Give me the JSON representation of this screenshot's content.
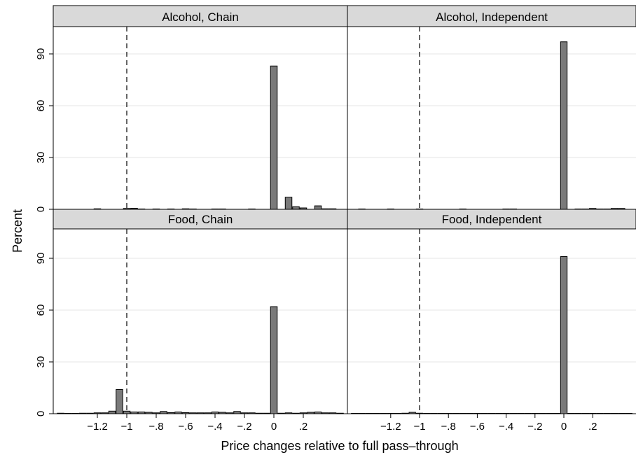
{
  "chart_data": {
    "type": "bar",
    "xlabel": "Price changes relative to full pass–through",
    "ylabel": "Percent",
    "xlim": [
      -1.5,
      0.5
    ],
    "ylim": [
      0,
      105
    ],
    "x_ticks": [
      -1.2,
      -1,
      -0.8,
      -0.6,
      -0.4,
      -0.2,
      0,
      0.2
    ],
    "x_tick_labels": [
      "−1.2",
      "−1",
      "−.8",
      "−.6",
      "−.4",
      "−.2",
      "0",
      ".2"
    ],
    "y_ticks": [
      0,
      30,
      60,
      90
    ],
    "y_tick_labels": [
      "0",
      "30",
      "60",
      "90"
    ],
    "reference_line": {
      "x": -1,
      "style": "dashed"
    },
    "grid": "horizontal",
    "bin_width": 0.05,
    "colors": {
      "bar_fill": "#7a7a7a",
      "bar_stroke": "#000000",
      "header_fill": "#d9d9d9",
      "grid": "#e6e6e6"
    },
    "panels": [
      {
        "title": "Alcohol, Chain",
        "bins": [
          {
            "x": -1.2,
            "value": 0.3
          },
          {
            "x": -1.0,
            "value": 0.5
          },
          {
            "x": -0.95,
            "value": 0.6
          },
          {
            "x": -0.9,
            "value": 0.2
          },
          {
            "x": -0.8,
            "value": 0.2
          },
          {
            "x": -0.7,
            "value": 0.2
          },
          {
            "x": -0.6,
            "value": 0.3
          },
          {
            "x": -0.55,
            "value": 0.2
          },
          {
            "x": -0.4,
            "value": 0.2
          },
          {
            "x": -0.35,
            "value": 0.2
          },
          {
            "x": -0.15,
            "value": 0.2
          },
          {
            "x": 0.0,
            "value": 83
          },
          {
            "x": 0.1,
            "value": 7
          },
          {
            "x": 0.15,
            "value": 1.5
          },
          {
            "x": 0.2,
            "value": 0.8
          },
          {
            "x": 0.3,
            "value": 2.0
          },
          {
            "x": 0.35,
            "value": 0.3
          },
          {
            "x": 0.4,
            "value": 0.3
          }
        ]
      },
      {
        "title": "Alcohol, Independent",
        "bins": [
          {
            "x": -1.4,
            "value": 0.2
          },
          {
            "x": -1.2,
            "value": 0.2
          },
          {
            "x": -1.0,
            "value": 0.2
          },
          {
            "x": -0.7,
            "value": 0.2
          },
          {
            "x": -0.4,
            "value": 0.2
          },
          {
            "x": -0.35,
            "value": 0.2
          },
          {
            "x": 0.0,
            "value": 97
          },
          {
            "x": 0.1,
            "value": 0.2
          },
          {
            "x": 0.15,
            "value": 0.2
          },
          {
            "x": 0.2,
            "value": 0.5
          },
          {
            "x": 0.25,
            "value": 0.2
          },
          {
            "x": 0.3,
            "value": 0.2
          },
          {
            "x": 0.35,
            "value": 0.5
          },
          {
            "x": 0.4,
            "value": 0.5
          }
        ]
      },
      {
        "title": "Food, Chain",
        "bins": [
          {
            "x": -1.45,
            "value": 0.3
          },
          {
            "x": -1.4,
            "value": 0.2
          },
          {
            "x": -1.35,
            "value": 0.2
          },
          {
            "x": -1.3,
            "value": 0.3
          },
          {
            "x": -1.25,
            "value": 0.3
          },
          {
            "x": -1.2,
            "value": 0.5
          },
          {
            "x": -1.15,
            "value": 0.5
          },
          {
            "x": -1.1,
            "value": 1.5
          },
          {
            "x": -1.05,
            "value": 14
          },
          {
            "x": -1.0,
            "value": 1.5
          },
          {
            "x": -0.95,
            "value": 1.0
          },
          {
            "x": -0.9,
            "value": 1.0
          },
          {
            "x": -0.85,
            "value": 0.8
          },
          {
            "x": -0.8,
            "value": 0.5
          },
          {
            "x": -0.75,
            "value": 1.3
          },
          {
            "x": -0.7,
            "value": 0.6
          },
          {
            "x": -0.65,
            "value": 1.0
          },
          {
            "x": -0.6,
            "value": 0.6
          },
          {
            "x": -0.55,
            "value": 0.5
          },
          {
            "x": -0.5,
            "value": 0.5
          },
          {
            "x": -0.45,
            "value": 0.5
          },
          {
            "x": -0.4,
            "value": 1.0
          },
          {
            "x": -0.35,
            "value": 0.8
          },
          {
            "x": -0.3,
            "value": 0.5
          },
          {
            "x": -0.25,
            "value": 1.3
          },
          {
            "x": -0.2,
            "value": 0.5
          },
          {
            "x": -0.15,
            "value": 0.5
          },
          {
            "x": -0.1,
            "value": 0.3
          },
          {
            "x": -0.05,
            "value": 0.3
          },
          {
            "x": 0.0,
            "value": 62
          },
          {
            "x": 0.05,
            "value": 0.3
          },
          {
            "x": 0.1,
            "value": 0.5
          },
          {
            "x": 0.15,
            "value": 0.3
          },
          {
            "x": 0.2,
            "value": 0.5
          },
          {
            "x": 0.25,
            "value": 0.8
          },
          {
            "x": 0.3,
            "value": 1.0
          },
          {
            "x": 0.35,
            "value": 0.5
          },
          {
            "x": 0.4,
            "value": 0.5
          },
          {
            "x": 0.45,
            "value": 0.3
          }
        ]
      },
      {
        "title": "Food, Independent",
        "bins": [
          {
            "x": -1.45,
            "value": 0.2
          },
          {
            "x": -1.4,
            "value": 0.2
          },
          {
            "x": -1.35,
            "value": 0.2
          },
          {
            "x": -1.3,
            "value": 0.2
          },
          {
            "x": -1.25,
            "value": 0.2
          },
          {
            "x": -1.2,
            "value": 0.2
          },
          {
            "x": -1.15,
            "value": 0.2
          },
          {
            "x": -1.1,
            "value": 0.3
          },
          {
            "x": -1.05,
            "value": 0.8
          },
          {
            "x": -1.0,
            "value": 0.3
          },
          {
            "x": -0.95,
            "value": 0.2
          },
          {
            "x": -0.9,
            "value": 0.2
          },
          {
            "x": -0.85,
            "value": 0.2
          },
          {
            "x": -0.8,
            "value": 0.2
          },
          {
            "x": -0.75,
            "value": 0.2
          },
          {
            "x": -0.7,
            "value": 0.2
          },
          {
            "x": -0.65,
            "value": 0.2
          },
          {
            "x": -0.6,
            "value": 0.2
          },
          {
            "x": -0.55,
            "value": 0.2
          },
          {
            "x": -0.5,
            "value": 0.2
          },
          {
            "x": -0.45,
            "value": 0.2
          },
          {
            "x": -0.4,
            "value": 0.2
          },
          {
            "x": -0.35,
            "value": 0.2
          },
          {
            "x": -0.3,
            "value": 0.2
          },
          {
            "x": -0.25,
            "value": 0.2
          },
          {
            "x": -0.2,
            "value": 0.2
          },
          {
            "x": -0.15,
            "value": 0.2
          },
          {
            "x": -0.1,
            "value": 0.2
          },
          {
            "x": -0.05,
            "value": 0.2
          },
          {
            "x": 0.0,
            "value": 91
          },
          {
            "x": 0.05,
            "value": 0.2
          },
          {
            "x": 0.1,
            "value": 0.2
          },
          {
            "x": 0.15,
            "value": 0.2
          },
          {
            "x": 0.2,
            "value": 0.2
          },
          {
            "x": 0.25,
            "value": 0.2
          },
          {
            "x": 0.3,
            "value": 0.2
          },
          {
            "x": 0.35,
            "value": 0.2
          },
          {
            "x": 0.4,
            "value": 0.2
          },
          {
            "x": 0.45,
            "value": 0.2
          }
        ]
      }
    ]
  }
}
